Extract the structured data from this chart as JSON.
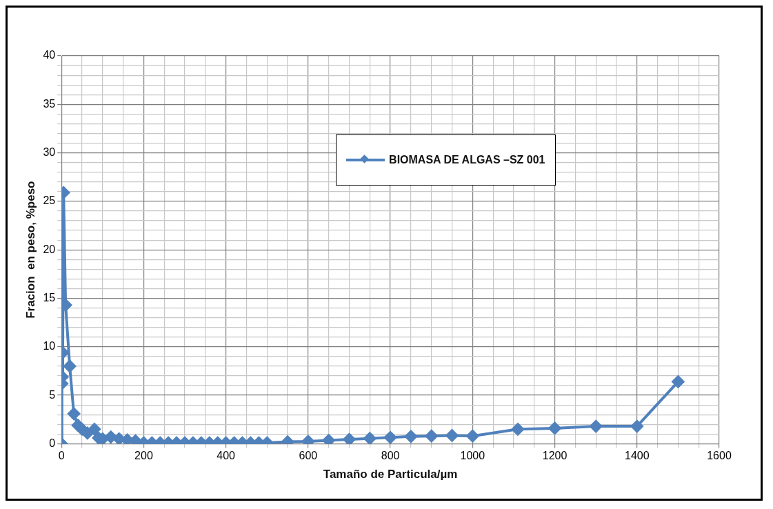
{
  "chart_data": {
    "type": "line",
    "xlabel": "Tamaño de Particula/µm",
    "ylabel": "Fracion  en peso, %peso",
    "legend": "center",
    "marker": "diamond",
    "line_style": "solid",
    "grid": true,
    "xlim": [
      0,
      1600
    ],
    "ylim": [
      0,
      40
    ],
    "xticks": [
      0,
      {
        "value": 50,
        "label": null
      },
      200,
      {
        "value": 100,
        "label": null
      },
      {
        "value": 150,
        "label": null
      },
      {
        "value": 250,
        "label": null
      },
      {
        "value": 300,
        "label": null
      },
      {
        "value": 350,
        "label": null
      },
      400,
      {
        "value": 450,
        "label": null
      },
      {
        "value": 500,
        "label": null
      },
      {
        "value": 550,
        "label": null
      },
      600,
      {
        "value": 650,
        "label": null
      },
      {
        "value": 700,
        "label": null
      },
      {
        "value": 750,
        "label": null
      },
      800,
      {
        "value": 850,
        "label": null
      },
      {
        "value": 900,
        "label": null
      },
      {
        "value": 950,
        "label": null
      },
      1000,
      {
        "value": 1050,
        "label": null
      },
      {
        "value": 1100,
        "label": null
      },
      {
        "value": 1150,
        "label": null
      },
      1200,
      {
        "value": 1250,
        "label": null
      },
      {
        "value": 1300,
        "label": null
      },
      {
        "value": 1350,
        "label": null
      },
      1400,
      {
        "value": 1450,
        "label": null
      },
      {
        "value": 1500,
        "label": null
      },
      {
        "value": 1550,
        "label": null
      },
      1600
    ],
    "yticks": [
      0,
      {
        "value": 1,
        "label": null
      },
      {
        "value": 2,
        "label": null
      },
      {
        "value": 3,
        "label": null
      },
      {
        "value": 4,
        "label": null
      },
      5,
      {
        "value": 6,
        "label": null
      },
      {
        "value": 7,
        "label": null
      },
      {
        "value": 8,
        "label": null
      },
      {
        "value": 9,
        "label": null
      },
      10,
      {
        "value": 11,
        "label": null
      },
      {
        "value": 12,
        "label": null
      },
      {
        "value": 13,
        "label": null
      },
      {
        "value": 14,
        "label": null
      },
      15,
      {
        "value": 16,
        "label": null
      },
      {
        "value": 17,
        "label": null
      },
      {
        "value": 18,
        "label": null
      },
      {
        "value": 19,
        "label": null
      },
      20,
      {
        "value": 21,
        "label": null
      },
      {
        "value": 22,
        "label": null
      },
      {
        "value": 23,
        "label": null
      },
      {
        "value": 24,
        "label": null
      },
      25,
      {
        "value": 26,
        "label": null
      },
      {
        "value": 27,
        "label": null
      },
      {
        "value": 28,
        "label": null
      },
      {
        "value": 29,
        "label": null
      },
      30,
      {
        "value": 31,
        "label": null
      },
      {
        "value": 32,
        "label": null
      },
      {
        "value": 33,
        "label": null
      },
      {
        "value": 34,
        "label": null
      },
      35,
      {
        "value": 36,
        "label": null
      },
      {
        "value": 37,
        "label": null
      },
      {
        "value": 38,
        "label": null
      },
      {
        "value": 39,
        "label": null
      },
      40
    ],
    "series": [
      {
        "name": "BIOMASA DE ALGAS –SZ 001",
        "color": "#4f81bd",
        "x": [
          0,
          1,
          2,
          3,
          5,
          10,
          20,
          30,
          40,
          50,
          63,
          80,
          90,
          100,
          120,
          140,
          160,
          180,
          200,
          220,
          240,
          260,
          280,
          300,
          320,
          340,
          360,
          380,
          400,
          420,
          440,
          460,
          480,
          500,
          550,
          600,
          650,
          700,
          750,
          800,
          850,
          900,
          950,
          1000,
          1110,
          1200,
          1300,
          1400,
          1500
        ],
        "values": [
          0,
          6.2,
          6.9,
          9.4,
          25.9,
          14.3,
          8,
          3.1,
          1.9,
          1.5,
          1.1,
          1.5,
          0.6,
          0.5,
          0.7,
          0.5,
          0.4,
          0.3,
          0.1,
          0.1,
          0.1,
          0.1,
          0.1,
          0.1,
          0.1,
          0.1,
          0.1,
          0.1,
          0.1,
          0.1,
          0.1,
          0.1,
          0.1,
          0.1,
          0.2,
          0.25,
          0.35,
          0.45,
          0.55,
          0.65,
          0.75,
          0.8,
          0.85,
          0.8,
          1.5,
          1.6,
          1.8,
          1.8,
          6.4
        ]
      }
    ]
  }
}
